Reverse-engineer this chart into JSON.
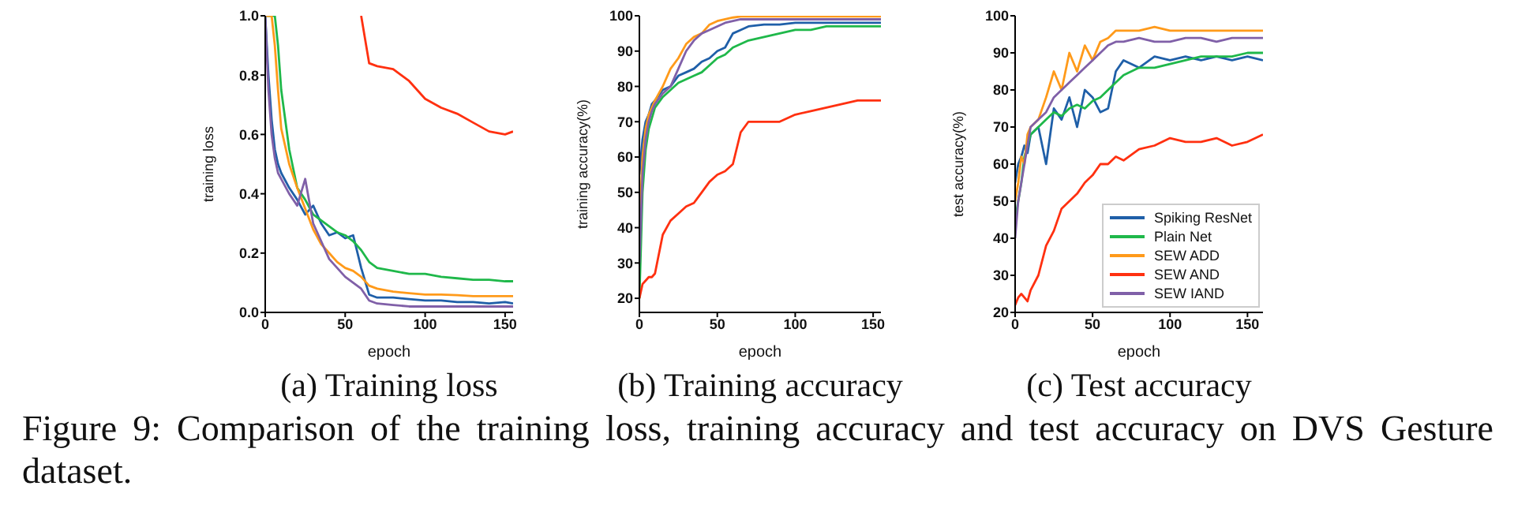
{
  "chart_data": [
    {
      "type": "line",
      "title": "(a) Training loss",
      "xlabel": "epoch",
      "ylabel": "training loss",
      "xlim": [
        0,
        155
      ],
      "xticks": [
        0,
        50,
        100,
        150
      ],
      "ylim": [
        0,
        1
      ],
      "yticks": [
        {
          "value": 0,
          "label": "0.0"
        },
        0.2,
        0.4,
        0.6,
        0.8,
        {
          "value": 1,
          "label": "1.0"
        }
      ],
      "grid": false,
      "legend": false,
      "marker": "none",
      "line_style": "solid",
      "annotations": [
        "Figure 9: Comparison of the training loss, training accuracy and test accuracy on DVS Gesture dataset."
      ],
      "x": [
        0,
        2,
        4,
        6,
        8,
        10,
        15,
        20,
        25,
        30,
        35,
        40,
        45,
        50,
        55,
        60,
        65,
        70,
        80,
        90,
        100,
        110,
        120,
        130,
        140,
        150,
        155
      ],
      "series": [
        {
          "color": "#1f5fa8",
          "values": [
            1.0,
            0.8,
            0.65,
            0.55,
            0.5,
            0.47,
            0.42,
            0.38,
            0.33,
            0.36,
            0.3,
            0.26,
            0.27,
            0.25,
            0.26,
            0.15,
            0.06,
            0.05,
            0.05,
            0.045,
            0.04,
            0.04,
            0.035,
            0.035,
            0.03,
            0.035,
            0.03
          ]
        },
        {
          "color": "#1fb84a",
          "values": [
            1.0,
            1.0,
            1.0,
            1.0,
            0.9,
            0.75,
            0.55,
            0.42,
            0.38,
            0.33,
            0.31,
            0.29,
            0.27,
            0.26,
            0.24,
            0.21,
            0.17,
            0.15,
            0.14,
            0.13,
            0.13,
            0.12,
            0.115,
            0.11,
            0.11,
            0.105,
            0.105
          ]
        },
        {
          "color": "#ff9a1a",
          "values": [
            1.0,
            1.0,
            1.0,
            0.9,
            0.75,
            0.62,
            0.5,
            0.42,
            0.35,
            0.28,
            0.23,
            0.2,
            0.17,
            0.15,
            0.14,
            0.12,
            0.09,
            0.08,
            0.07,
            0.065,
            0.06,
            0.06,
            0.058,
            0.055,
            0.055,
            0.055,
            0.055
          ]
        },
        {
          "color": "#ff3010",
          "values": [
            null,
            null,
            null,
            null,
            null,
            null,
            null,
            null,
            null,
            null,
            null,
            null,
            null,
            null,
            null,
            1.0,
            0.84,
            0.83,
            0.82,
            0.78,
            0.72,
            0.69,
            0.67,
            0.64,
            0.61,
            0.6,
            0.61
          ]
        },
        {
          "color": "#8060a8",
          "values": [
            1.0,
            0.75,
            0.6,
            0.52,
            0.47,
            0.45,
            0.4,
            0.36,
            0.45,
            0.3,
            0.24,
            0.18,
            0.15,
            0.12,
            0.1,
            0.08,
            0.04,
            0.03,
            0.025,
            0.02,
            0.02,
            0.02,
            0.02,
            0.02,
            0.02,
            0.02,
            0.02
          ]
        }
      ]
    },
    {
      "type": "line",
      "title": "(b) Training accuracy",
      "xlabel": "epoch",
      "ylabel": "training accuracy(%)",
      "xlim": [
        0,
        155
      ],
      "xticks": [
        0,
        50,
        100,
        150
      ],
      "ylim": [
        16,
        100
      ],
      "yticks": [
        20,
        30,
        40,
        50,
        60,
        70,
        80,
        90,
        100
      ],
      "grid": false,
      "legend": false,
      "marker": "none",
      "line_style": "solid",
      "x": [
        0,
        2,
        4,
        6,
        8,
        10,
        15,
        20,
        25,
        30,
        35,
        40,
        45,
        50,
        55,
        60,
        65,
        70,
        80,
        90,
        100,
        110,
        120,
        130,
        140,
        150,
        155
      ],
      "series": [
        {
          "color": "#1f5fa8",
          "values": [
            55,
            65,
            70,
            72,
            75,
            76,
            79,
            80,
            83,
            84,
            85,
            87,
            88,
            90,
            91,
            95,
            96,
            97,
            97.5,
            97.5,
            98,
            98,
            98,
            98,
            98,
            98,
            98
          ]
        },
        {
          "color": "#1fb84a",
          "values": [
            20,
            50,
            62,
            68,
            71,
            74,
            77,
            79,
            81,
            82,
            83,
            84,
            86,
            88,
            89,
            91,
            92,
            93,
            94,
            95,
            96,
            96,
            97,
            97,
            97,
            97,
            97
          ]
        },
        {
          "color": "#ff9a1a",
          "values": [
            40,
            60,
            68,
            72,
            74,
            76,
            80,
            85,
            88,
            92,
            94,
            95,
            97.5,
            98.5,
            99,
            99.5,
            99.8,
            99.8,
            99.8,
            99.8,
            99.8,
            99.8,
            99.8,
            99.8,
            99.8,
            99.8,
            99.8
          ]
        },
        {
          "color": "#ff3010",
          "values": [
            20,
            24,
            25,
            26,
            26,
            27,
            38,
            42,
            44,
            46,
            47,
            50,
            53,
            55,
            56,
            58,
            67,
            70,
            70,
            70,
            72,
            73,
            74,
            75,
            76,
            76,
            76
          ]
        },
        {
          "color": "#8060a8",
          "values": [
            30,
            55,
            65,
            70,
            73,
            75,
            78,
            80,
            85,
            90,
            93,
            95,
            96,
            97,
            98,
            98.5,
            99,
            99,
            99,
            99,
            99,
            99,
            99,
            99,
            99,
            99,
            99
          ]
        }
      ]
    },
    {
      "type": "line",
      "title": "(c) Test accuracy",
      "xlabel": "epoch",
      "ylabel": "test accuracy(%)",
      "xlim": [
        0,
        160
      ],
      "xticks": [
        0,
        50,
        100,
        150
      ],
      "ylim": [
        20,
        100
      ],
      "yticks": [
        20,
        30,
        40,
        50,
        60,
        70,
        80,
        90,
        100
      ],
      "grid": false,
      "legend": "bottom right",
      "marker": "none",
      "line_style": "solid",
      "x": [
        0,
        2,
        4,
        6,
        8,
        10,
        15,
        20,
        25,
        30,
        35,
        40,
        45,
        50,
        55,
        60,
        65,
        70,
        80,
        90,
        100,
        110,
        120,
        130,
        140,
        150,
        160
      ],
      "series": [
        {
          "name": "Spiking ResNet",
          "color": "#1f5fa8",
          "values": [
            55,
            60,
            62,
            65,
            63,
            68,
            70,
            60,
            75,
            72,
            78,
            70,
            80,
            78,
            74,
            75,
            85,
            88,
            86,
            89,
            88,
            89,
            88,
            89,
            88,
            89,
            88
          ]
        },
        {
          "name": "Plain Net",
          "color": "#1fb84a",
          "values": [
            45,
            50,
            55,
            62,
            65,
            68,
            70,
            72,
            74,
            73,
            75,
            76,
            75,
            77,
            78,
            80,
            82,
            84,
            86,
            86,
            87,
            88,
            89,
            89,
            89,
            90,
            90
          ]
        },
        {
          "name": "SEW ADD",
          "color": "#ff9a1a",
          "values": [
            50,
            55,
            62,
            60,
            68,
            70,
            72,
            78,
            85,
            80,
            90,
            85,
            92,
            88,
            93,
            94,
            96,
            96,
            96,
            97,
            96,
            96,
            96,
            96,
            96,
            96,
            96
          ]
        },
        {
          "name": "SEW AND",
          "color": "#ff3010",
          "values": [
            22,
            24,
            25,
            24,
            23,
            26,
            30,
            38,
            42,
            48,
            50,
            52,
            55,
            57,
            60,
            60,
            62,
            61,
            64,
            65,
            67,
            66,
            66,
            67,
            65,
            66,
            68
          ]
        },
        {
          "name": "SEW IAND",
          "color": "#8060a8",
          "values": [
            40,
            50,
            55,
            60,
            65,
            70,
            72,
            74,
            78,
            80,
            82,
            84,
            86,
            88,
            90,
            92,
            93,
            93,
            94,
            93,
            93,
            94,
            94,
            93,
            94,
            94,
            94
          ]
        }
      ]
    }
  ]
}
